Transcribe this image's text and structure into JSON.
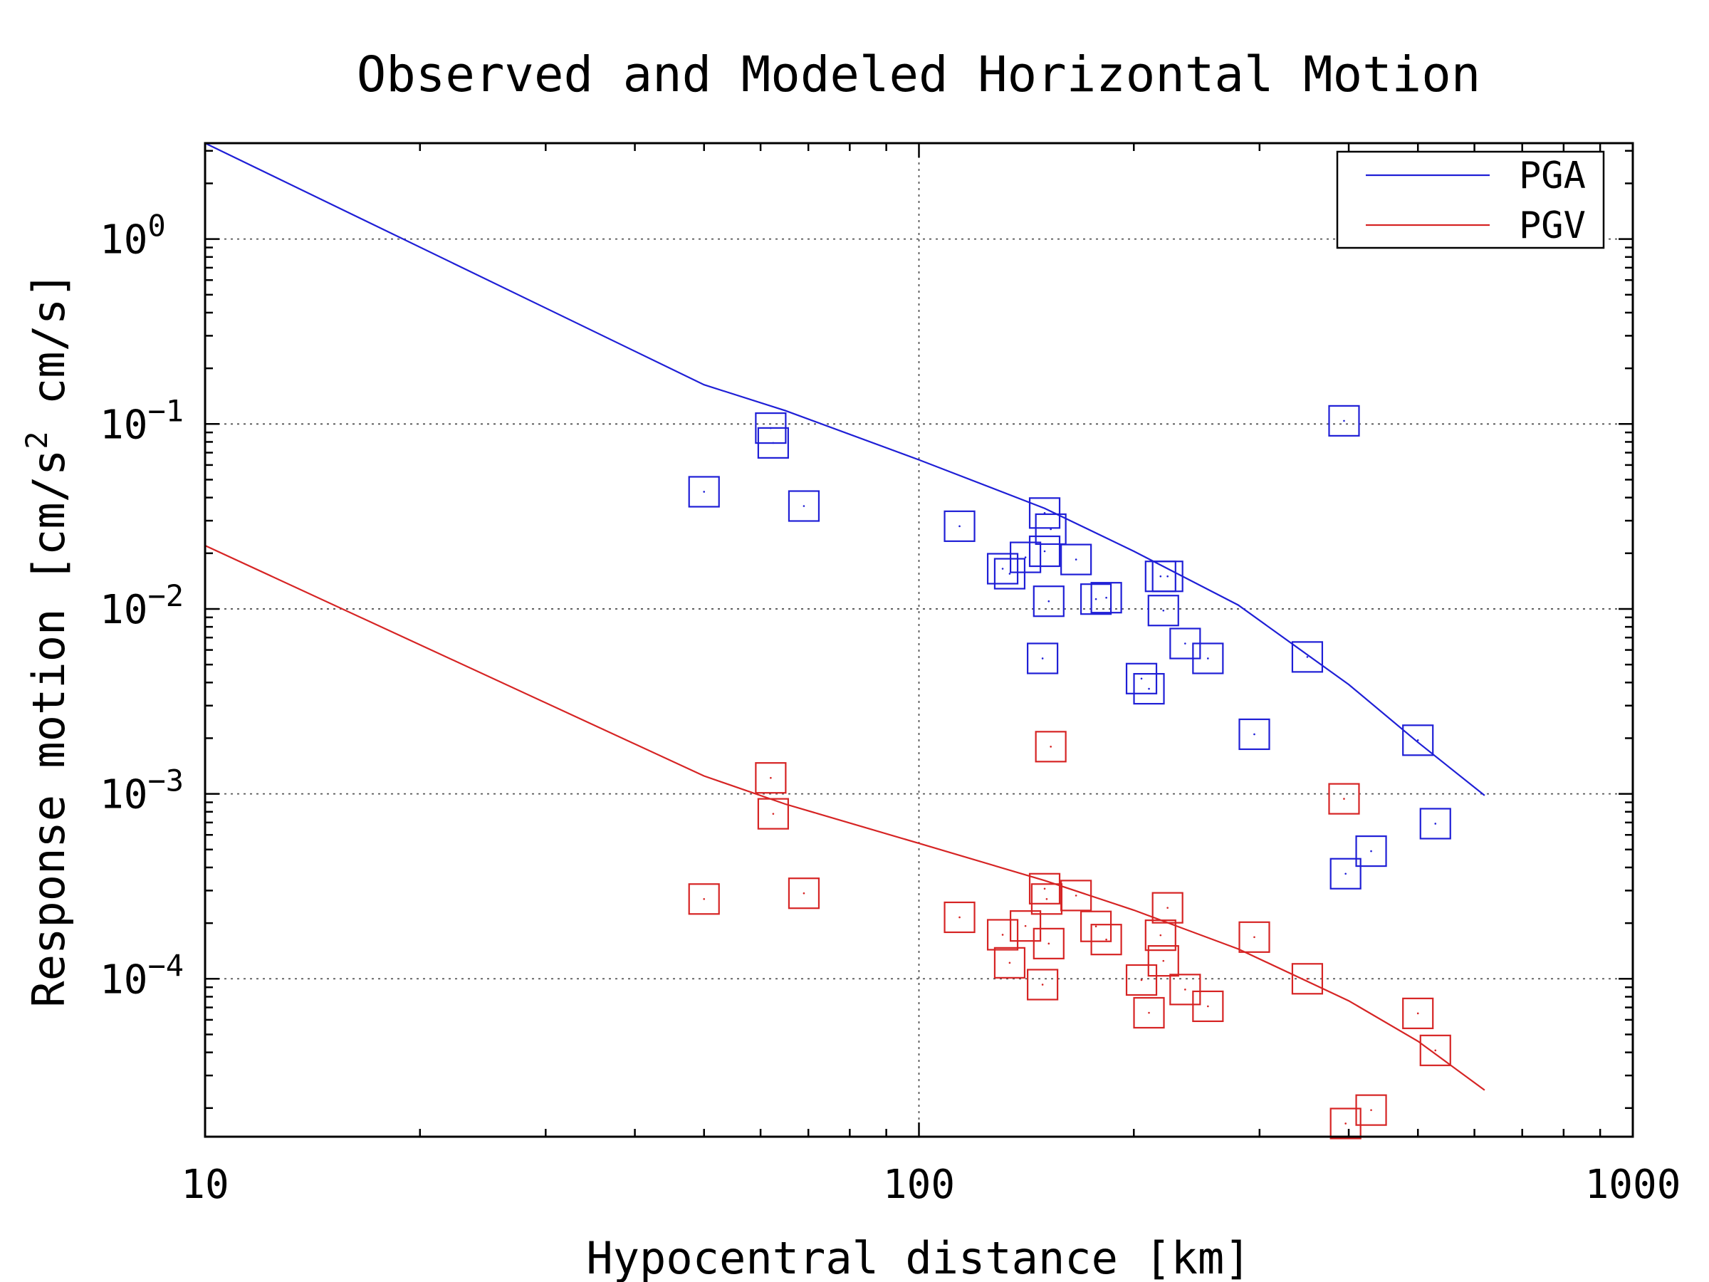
{
  "chart_data": {
    "type": "scatter",
    "title": "Observed and Modeled Horizontal Motion",
    "xlabel": "Hypocentral distance [km]",
    "ylabel_parts": {
      "prefix": "Response motion [cm/s",
      "sup": "2",
      "suffix": "  cm/s]"
    },
    "x_scale": "log",
    "y_scale": "log",
    "xlim": [
      10,
      1000
    ],
    "ylim": [
      1.4e-05,
      3.3
    ],
    "x_ticks": [
      10,
      100,
      1000
    ],
    "x_tick_labels": [
      "10",
      "100",
      "1000"
    ],
    "y_ticks": [
      {
        "value": 1,
        "base": "10",
        "exp": "0"
      },
      {
        "value": 0.1,
        "base": "10",
        "exp": "−1"
      },
      {
        "value": 0.01,
        "base": "10",
        "exp": "−2"
      },
      {
        "value": 0.001,
        "base": "10",
        "exp": "−3"
      },
      {
        "value": 0.0001,
        "base": "10",
        "exp": "−4"
      }
    ],
    "grid": true,
    "legend_position": "top-right",
    "legend": [
      {
        "label": "PGA",
        "color": "#1f1fd6"
      },
      {
        "label": "PGV",
        "color": "#d62424"
      }
    ],
    "model_curves": [
      {
        "name": "PGA",
        "color": "#1f1fd6",
        "x": [
          10,
          50,
          65,
          100,
          150,
          200,
          280,
          400,
          500,
          620
        ],
        "y": [
          3.3,
          0.163,
          0.118,
          0.064,
          0.035,
          0.0205,
          0.0105,
          0.0039,
          0.0019,
          0.00098
        ]
      },
      {
        "name": "PGV",
        "color": "#d62424",
        "x": [
          10,
          50,
          65,
          100,
          150,
          200,
          280,
          400,
          500,
          620
        ],
        "y": [
          0.022,
          0.00125,
          0.00088,
          0.00054,
          0.00034,
          0.000235,
          0.000145,
          7.6e-05,
          4.6e-05,
          2.5e-05
        ]
      }
    ],
    "series": [
      {
        "name": "PGA observed",
        "color": "#1f1fd6",
        "marker": "square",
        "x": [
          50,
          62,
          62.5,
          69,
          114,
          131,
          134,
          141,
          149,
          150,
          150,
          152,
          153,
          166,
          177,
          183,
          205,
          210,
          218,
          220,
          223,
          236,
          254,
          295,
          350,
          394,
          396,
          430,
          500,
          529
        ],
        "y": [
          0.043,
          0.095,
          0.079,
          0.036,
          0.028,
          0.0165,
          0.0155,
          0.019,
          0.0054,
          0.033,
          0.0205,
          0.011,
          0.027,
          0.0185,
          0.0113,
          0.0115,
          0.0042,
          0.0037,
          0.015,
          0.0098,
          0.015,
          0.0065,
          0.0054,
          0.0021,
          0.0055,
          0.104,
          0.00037,
          0.00049,
          0.00195,
          0.00069
        ]
      },
      {
        "name": "PGV observed",
        "color": "#d62424",
        "marker": "square",
        "x": [
          50,
          62,
          62.5,
          69,
          114,
          131,
          134,
          141,
          149,
          150,
          151,
          152,
          153,
          166,
          177,
          183,
          205,
          210,
          218,
          220,
          223,
          236,
          254,
          295,
          350,
          394,
          396,
          430,
          500,
          529
        ],
        "y": [
          0.00027,
          0.00122,
          0.00078,
          0.00029,
          0.000215,
          0.000173,
          0.000122,
          0.000193,
          9.3e-05,
          0.000307,
          0.00027,
          0.000155,
          0.0018,
          0.000282,
          0.000192,
          0.000163,
          9.85e-05,
          6.55e-05,
          0.000172,
          0.000125,
          0.000242,
          8.75e-05,
          7.1e-05,
          0.000168,
          0.0001,
          0.00094,
          1.65e-05,
          1.95e-05,
          6.5e-05,
          4.1e-05
        ]
      }
    ]
  }
}
